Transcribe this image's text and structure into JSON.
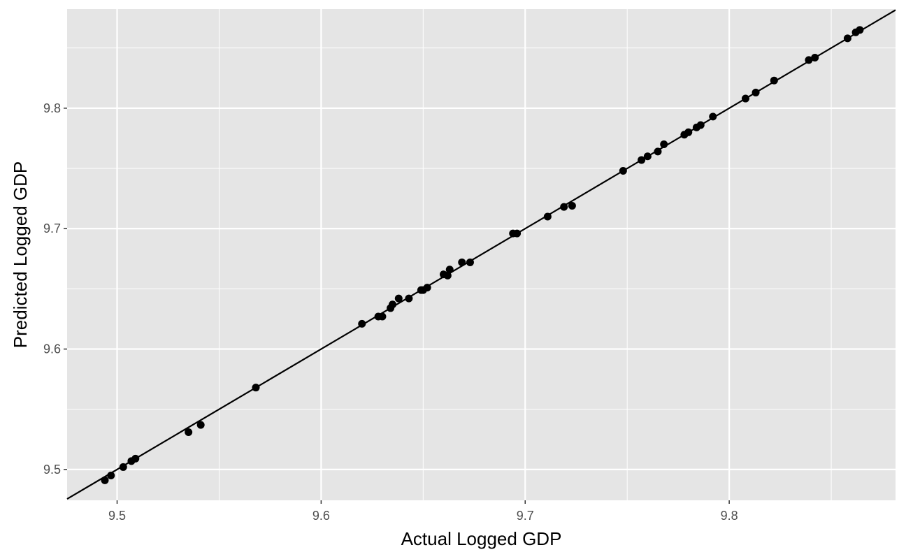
{
  "chart_data": {
    "type": "scatter",
    "title": "",
    "xlabel": "Actual Logged GDP",
    "ylabel": "Predicted Logged GDP",
    "xlim": [
      9.4755,
      9.8815
    ],
    "ylim": [
      9.4744,
      9.8823
    ],
    "x_ticks": [
      9.5,
      9.6,
      9.7,
      9.8
    ],
    "x_tick_labels": [
      "9.5",
      "9.6",
      "9.7",
      "9.8"
    ],
    "y_ticks": [
      9.5,
      9.6,
      9.7,
      9.8
    ],
    "y_tick_labels": [
      "9.5",
      "9.6",
      "9.7",
      "9.8"
    ],
    "grid": true,
    "reference_line": {
      "type": "identity",
      "slope": 1,
      "intercept": 0
    },
    "points": [
      [
        9.494,
        9.491
      ],
      [
        9.497,
        9.495
      ],
      [
        9.503,
        9.502
      ],
      [
        9.507,
        9.507
      ],
      [
        9.509,
        9.509
      ],
      [
        9.535,
        9.531
      ],
      [
        9.541,
        9.537
      ],
      [
        9.568,
        9.568
      ],
      [
        9.62,
        9.621
      ],
      [
        9.628,
        9.627
      ],
      [
        9.63,
        9.627
      ],
      [
        9.634,
        9.634
      ],
      [
        9.635,
        9.637
      ],
      [
        9.638,
        9.642
      ],
      [
        9.643,
        9.642
      ],
      [
        9.649,
        9.649
      ],
      [
        9.65,
        9.649
      ],
      [
        9.652,
        9.651
      ],
      [
        9.66,
        9.662
      ],
      [
        9.662,
        9.661
      ],
      [
        9.663,
        9.666
      ],
      [
        9.669,
        9.672
      ],
      [
        9.673,
        9.672
      ],
      [
        9.694,
        9.696
      ],
      [
        9.696,
        9.696
      ],
      [
        9.711,
        9.71
      ],
      [
        9.719,
        9.718
      ],
      [
        9.723,
        9.719
      ],
      [
        9.748,
        9.748
      ],
      [
        9.757,
        9.757
      ],
      [
        9.76,
        9.76
      ],
      [
        9.765,
        9.764
      ],
      [
        9.768,
        9.77
      ],
      [
        9.778,
        9.778
      ],
      [
        9.78,
        9.78
      ],
      [
        9.784,
        9.784
      ],
      [
        9.786,
        9.786
      ],
      [
        9.792,
        9.793
      ],
      [
        9.808,
        9.808
      ],
      [
        9.813,
        9.813
      ],
      [
        9.822,
        9.823
      ],
      [
        9.839,
        9.84
      ],
      [
        9.842,
        9.842
      ],
      [
        9.858,
        9.858
      ],
      [
        9.862,
        9.863
      ],
      [
        9.864,
        9.865
      ]
    ],
    "colors": {
      "panel_background": "#e5e5e5",
      "grid": "#ffffff",
      "points": "#000000",
      "reference_line": "#000000",
      "tick_label": "#4d4d4d",
      "axis_title": "#000000"
    }
  }
}
